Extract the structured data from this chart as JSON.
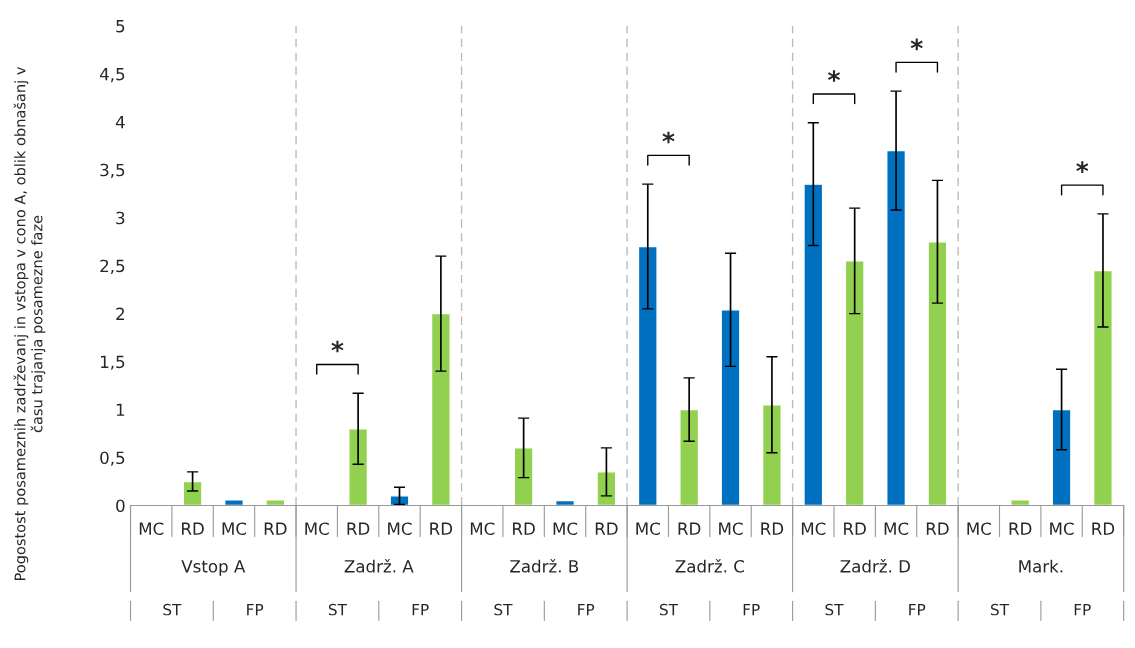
{
  "chart_data": {
    "type": "bar",
    "ylabel": "Pogostost posameznih zadrževanj in vstopa v cono A, oblik obnašanj v\nčasu trajanja posamezne faze",
    "categories": [
      "MC",
      "RD",
      "MC",
      "RD",
      "MC",
      "RD",
      "MC",
      "RD",
      "MC",
      "RD",
      "MC",
      "RD",
      "MC",
      "RD",
      "MC",
      "RD",
      "MC",
      "RD",
      "MC",
      "RD",
      "MC",
      "RD",
      "MC",
      "RD"
    ],
    "values": [
      null,
      0.25,
      0.06,
      0.06,
      null,
      0.8,
      0.1,
      2.0,
      null,
      0.6,
      0.05,
      0.35,
      2.7,
      1.0,
      2.04,
      1.05,
      3.35,
      2.55,
      3.7,
      2.75,
      null,
      0.06,
      1.0,
      2.45
    ],
    "errors": [
      null,
      0.1,
      null,
      null,
      null,
      0.37,
      0.09,
      0.6,
      null,
      0.31,
      null,
      0.25,
      0.65,
      0.33,
      0.59,
      0.5,
      0.64,
      0.55,
      0.62,
      0.64,
      null,
      null,
      0.42,
      0.59
    ],
    "colors": [
      "#0070c0",
      "#92d050",
      "#0070c0",
      "#92d050",
      "#0070c0",
      "#92d050",
      "#0070c0",
      "#92d050",
      "#0070c0",
      "#92d050",
      "#0070c0",
      "#92d050",
      "#0070c0",
      "#92d050",
      "#0070c0",
      "#92d050",
      "#0070c0",
      "#92d050",
      "#0070c0",
      "#92d050",
      "#0070c0",
      "#92d050",
      "#0070c0",
      "#92d050"
    ],
    "ylim": [
      0,
      5
    ],
    "yticks": [
      0,
      {
        "value": 0.5,
        "label": "0,5"
      },
      1,
      {
        "value": 1.5,
        "label": "1,5"
      },
      2,
      {
        "value": 2.5,
        "label": "2,5"
      },
      3,
      {
        "value": 3.5,
        "label": "3,5"
      },
      4,
      {
        "value": 4.5,
        "label": "4,5"
      },
      5
    ],
    "grid": false,
    "legend": false,
    "annotations": [
      "Vstop A",
      "Zadrž. A",
      "Zadrž. B",
      "Zadrž. C",
      "Zadrž. D",
      "Mark.",
      "ST",
      "FP",
      "ST",
      "FP",
      "ST",
      "FP",
      "ST",
      "FP",
      "ST",
      "FP",
      "ST",
      "FP",
      "*",
      "*",
      "*",
      "*",
      "*"
    ]
  }
}
